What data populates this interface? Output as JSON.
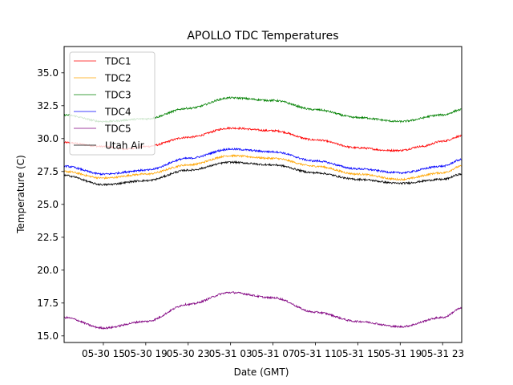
{
  "chart_data": {
    "type": "line",
    "title": "APOLLO TDC Temperatures",
    "xlabel": "Date (GMT)",
    "ylabel": "Temperature (C)",
    "ylim": [
      14.5,
      37.0
    ],
    "xlim": [
      -3.7,
      33.8
    ],
    "x_units": "hours since 2017-05-30 15:00 GMT",
    "yticks": [
      15.0,
      17.5,
      20.0,
      22.5,
      25.0,
      27.5,
      30.0,
      32.5,
      35.0
    ],
    "ytick_labels": [
      "15.0",
      "17.5",
      "20.0",
      "22.5",
      "25.0",
      "27.5",
      "30.0",
      "32.5",
      "35.0"
    ],
    "xticks": [
      0,
      4,
      8,
      12,
      16,
      20,
      24,
      28,
      32
    ],
    "xtick_labels": [
      "05-30 15",
      "05-30 19",
      "05-30 23",
      "05-31 03",
      "05-31 07",
      "05-31 11",
      "05-31 15",
      "05-31 19",
      "05-31 23"
    ],
    "grid": false,
    "legend_position": "top-left",
    "series": [
      {
        "name": "TDC1",
        "color": "#ff0000",
        "x": [
          -3.7,
          0,
          2,
          4,
          8,
          12,
          16,
          20,
          24,
          27,
          28,
          30,
          32,
          33.8
        ],
        "y": [
          29.7,
          29.4,
          29.2,
          29.4,
          30.1,
          30.8,
          30.6,
          29.9,
          29.3,
          29.1,
          29.1,
          29.4,
          29.8,
          30.2
        ]
      },
      {
        "name": "TDC2",
        "color": "#ffa500",
        "x": [
          -3.7,
          0,
          4,
          8,
          12,
          16,
          20,
          24,
          28,
          32,
          33.8
        ],
        "y": [
          27.5,
          27.0,
          27.3,
          28.0,
          28.7,
          28.5,
          27.9,
          27.3,
          26.9,
          27.4,
          27.9
        ]
      },
      {
        "name": "TDC3",
        "color": "#008000",
        "x": [
          -3.7,
          0,
          4,
          8,
          12,
          16,
          20,
          24,
          28,
          32,
          33.8
        ],
        "y": [
          31.8,
          31.3,
          31.5,
          32.3,
          33.1,
          32.9,
          32.2,
          31.6,
          31.3,
          31.8,
          32.2
        ]
      },
      {
        "name": "TDC4",
        "color": "#0000ff",
        "x": [
          -3.7,
          0,
          4,
          8,
          12,
          16,
          20,
          24,
          28,
          32,
          33.8
        ],
        "y": [
          27.9,
          27.3,
          27.6,
          28.5,
          29.2,
          29.0,
          28.3,
          27.7,
          27.4,
          27.9,
          28.4
        ]
      },
      {
        "name": "TDC5",
        "color": "#800080",
        "x": [
          -3.7,
          0,
          4,
          8,
          12,
          16,
          20,
          24,
          28,
          32,
          33.8
        ],
        "y": [
          16.4,
          15.6,
          16.1,
          17.4,
          18.3,
          17.9,
          16.8,
          16.1,
          15.7,
          16.4,
          17.1
        ]
      },
      {
        "name": "Utah Air",
        "color": "#000000",
        "x": [
          -3.7,
          0,
          4,
          8,
          12,
          16,
          20,
          24,
          28,
          32,
          33.8
        ],
        "y": [
          27.2,
          26.5,
          26.8,
          27.6,
          28.2,
          28.0,
          27.4,
          26.9,
          26.6,
          26.9,
          27.3
        ]
      }
    ]
  }
}
